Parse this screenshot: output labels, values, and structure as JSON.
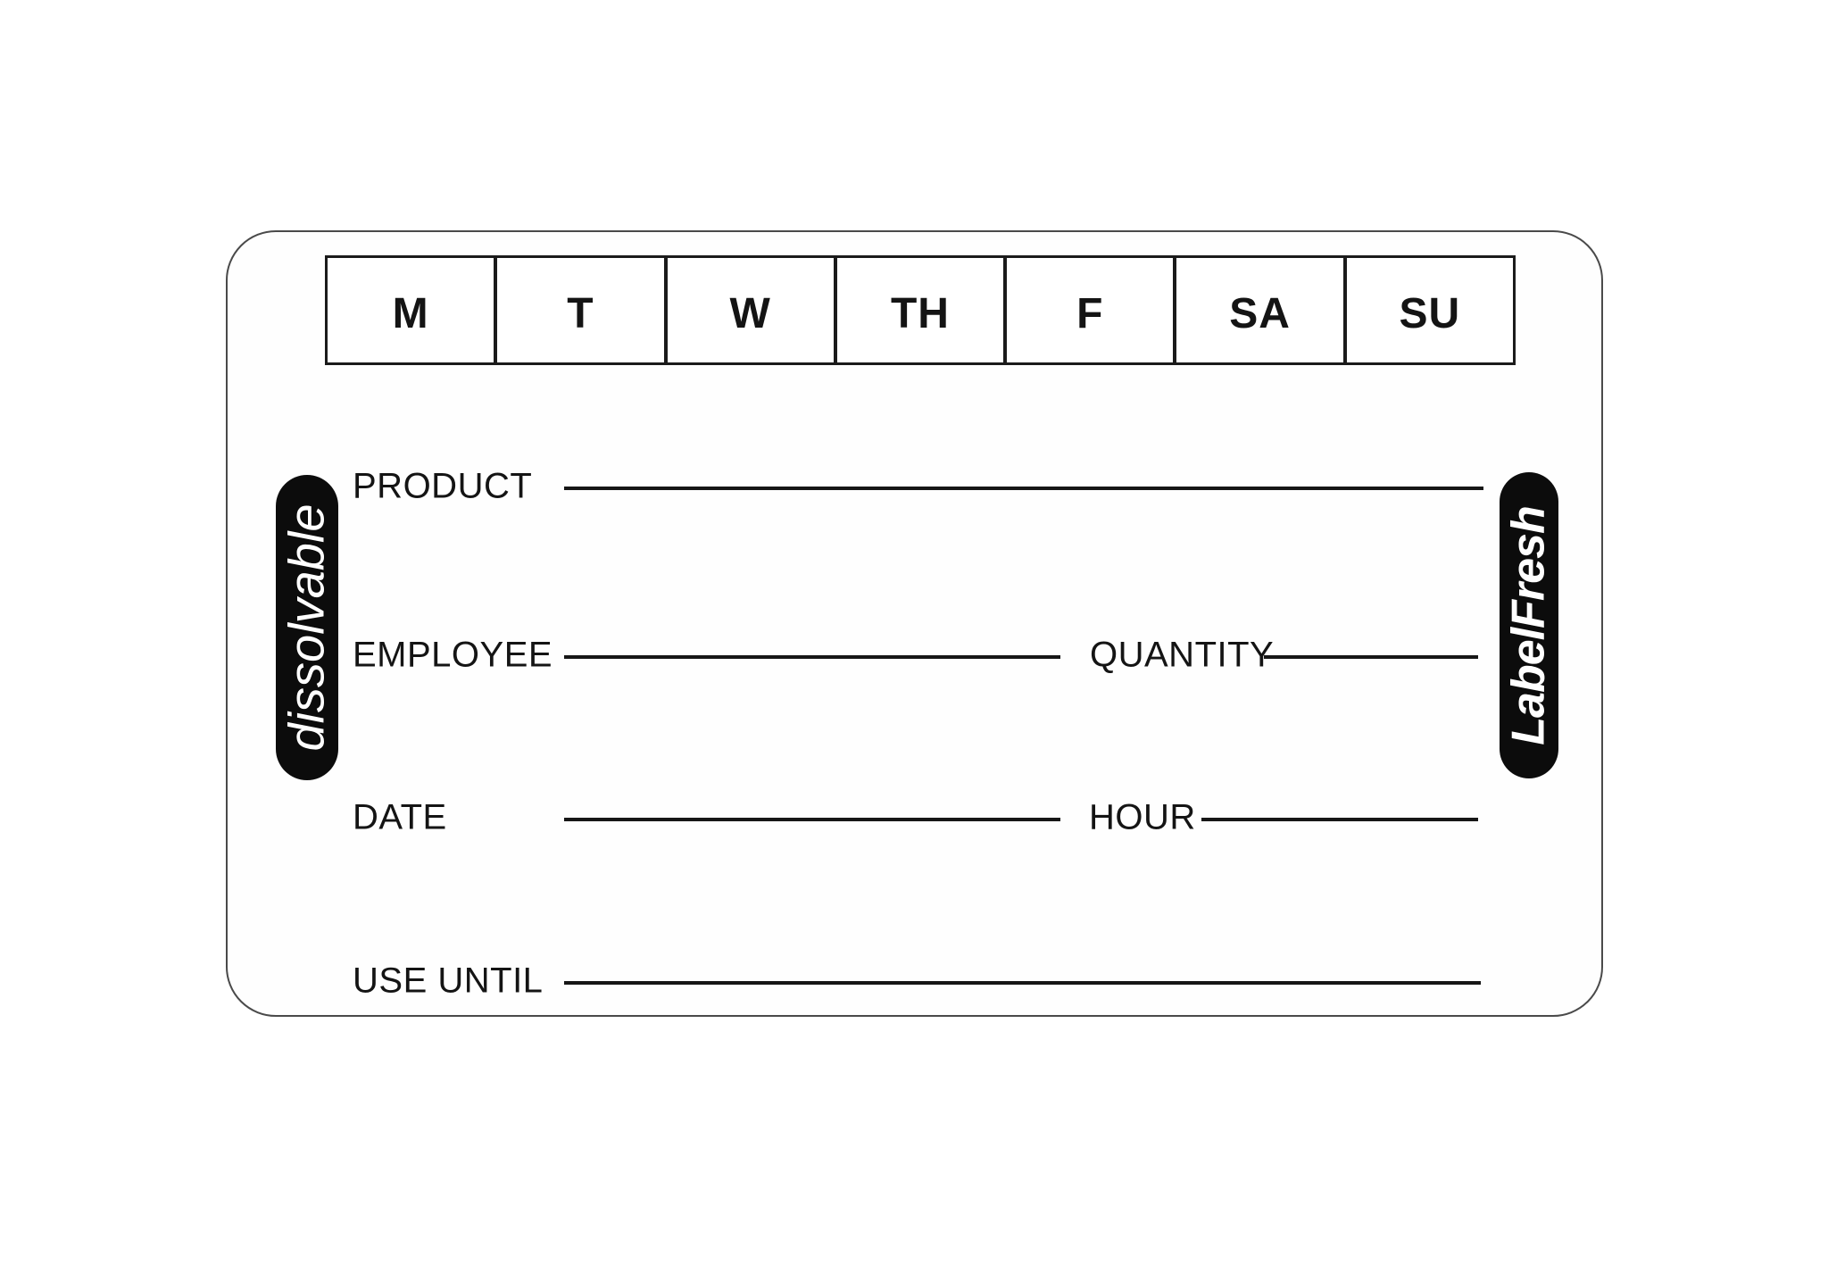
{
  "label": {
    "day_strip": {
      "days": [
        "M",
        "T",
        "W",
        "TH",
        "F",
        "SA",
        "SU"
      ]
    },
    "badges": {
      "left": {
        "text": "dissolvable",
        "background": "#0c0c0c",
        "text_color": "#ffffff"
      },
      "right": {
        "text": "LabelFresh",
        "background": "#0c0c0c",
        "text_color": "#ffffff"
      }
    },
    "fields": {
      "product_label": "PRODUCT",
      "employee_label": "EMPLOYEE",
      "quantity_label": "QUANTITY",
      "date_label": "DATE",
      "hour_label": "HOUR",
      "use_until_label": "USE UNTIL"
    },
    "colors": {
      "ink": "#141414",
      "line": "#161616",
      "card_border": "#4a4a4a",
      "strip_border": "#1b1b1b",
      "background": "#ffffff"
    }
  }
}
